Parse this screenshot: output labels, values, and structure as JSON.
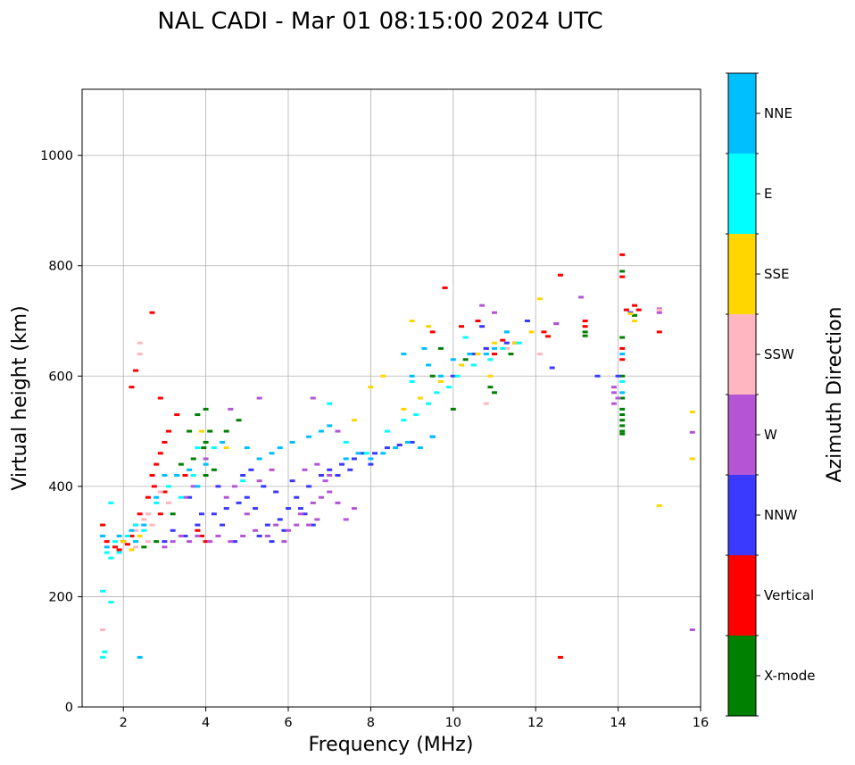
{
  "chart_data": {
    "type": "scatter",
    "title": "NAL CADI - Mar 01 08:15:00 2024 UTC",
    "xlabel": "Frequency (MHz)",
    "ylabel": "Virtual height (km)",
    "xlim": [
      1,
      16
    ],
    "ylim": [
      0,
      1120
    ],
    "xticks": [
      2,
      4,
      6,
      8,
      10,
      12,
      14,
      16
    ],
    "yticks": [
      0,
      200,
      400,
      600,
      800,
      1000
    ],
    "grid": true,
    "colorbar": {
      "label": "Azimuth Direction",
      "categories": [
        {
          "name": "X-mode",
          "color": "#008000"
        },
        {
          "name": "Vertical",
          "color": "#ff0000"
        },
        {
          "name": "NNW",
          "color": "#3a3aff"
        },
        {
          "name": "W",
          "color": "#b455d6"
        },
        {
          "name": "SSW",
          "color": "#ffb6c1"
        },
        {
          "name": "SSE",
          "color": "#ffd700"
        },
        {
          "name": "E",
          "color": "#00ffff"
        },
        {
          "name": "NNE",
          "color": "#00bfff"
        }
      ]
    },
    "series": [
      {
        "name": "Vertical",
        "points": [
          [
            1.5,
            330
          ],
          [
            1.6,
            300
          ],
          [
            1.8,
            290
          ],
          [
            1.9,
            285
          ],
          [
            2.0,
            300
          ],
          [
            2.1,
            295
          ],
          [
            2.2,
            310
          ],
          [
            2.3,
            330
          ],
          [
            2.4,
            350
          ],
          [
            2.6,
            380
          ],
          [
            2.7,
            420
          ],
          [
            2.8,
            440
          ],
          [
            2.9,
            460
          ],
          [
            3.0,
            480
          ],
          [
            3.1,
            500
          ],
          [
            2.75,
            400
          ],
          [
            2.9,
            350
          ],
          [
            3.0,
            390
          ],
          [
            3.5,
            420
          ],
          [
            3.3,
            530
          ],
          [
            2.9,
            560
          ],
          [
            3.8,
            320
          ],
          [
            3.9,
            310
          ],
          [
            4.0,
            300
          ],
          [
            2.3,
            610
          ],
          [
            2.2,
            580
          ],
          [
            2.7,
            715
          ],
          [
            12.2,
            680
          ],
          [
            12.3,
            672
          ],
          [
            12.6,
            783
          ],
          [
            13.2,
            700
          ],
          [
            13.2,
            690
          ],
          [
            14.1,
            820
          ],
          [
            14.1,
            780
          ],
          [
            14.1,
            650
          ],
          [
            14.1,
            630
          ],
          [
            14.2,
            720
          ],
          [
            14.4,
            728
          ],
          [
            14.5,
            720
          ],
          [
            15.0,
            680
          ],
          [
            12.6,
            90
          ],
          [
            11.2,
            665
          ],
          [
            11.5,
            660
          ],
          [
            11.0,
            640
          ],
          [
            10.8,
            650
          ],
          [
            9.8,
            760
          ],
          [
            10.2,
            690
          ],
          [
            10.6,
            700
          ],
          [
            9.5,
            680
          ]
        ]
      },
      {
        "name": "X-mode",
        "points": [
          [
            2.5,
            290
          ],
          [
            2.8,
            300
          ],
          [
            3.2,
            350
          ],
          [
            3.4,
            440
          ],
          [
            3.7,
            450
          ],
          [
            3.8,
            530
          ],
          [
            4.0,
            540
          ],
          [
            4.0,
            480
          ],
          [
            3.95,
            470
          ],
          [
            4.1,
            500
          ],
          [
            4.2,
            430
          ],
          [
            4.0,
            420
          ],
          [
            4.5,
            500
          ],
          [
            4.8,
            520
          ],
          [
            3.6,
            500
          ],
          [
            10.9,
            580
          ],
          [
            10.0,
            540
          ],
          [
            9.5,
            600
          ],
          [
            9.7,
            650
          ],
          [
            10.3,
            630
          ],
          [
            11.0,
            570
          ],
          [
            11.4,
            640
          ],
          [
            13.2,
            680
          ],
          [
            13.2,
            673
          ],
          [
            14.1,
            670
          ],
          [
            14.1,
            600
          ],
          [
            14.1,
            560
          ],
          [
            14.1,
            540
          ],
          [
            14.1,
            530
          ],
          [
            14.1,
            520
          ],
          [
            14.1,
            510
          ],
          [
            14.1,
            500
          ],
          [
            14.1,
            495
          ],
          [
            14.1,
            790
          ],
          [
            14.4,
            710
          ],
          [
            14.0,
            560
          ]
        ]
      },
      {
        "name": "NNW",
        "points": [
          [
            3.0,
            300
          ],
          [
            3.2,
            320
          ],
          [
            3.5,
            310
          ],
          [
            3.8,
            330
          ],
          [
            4.2,
            350
          ],
          [
            4.5,
            360
          ],
          [
            4.8,
            370
          ],
          [
            5.0,
            380
          ],
          [
            5.2,
            360
          ],
          [
            5.5,
            330
          ],
          [
            5.8,
            340
          ],
          [
            6.0,
            360
          ],
          [
            6.2,
            380
          ],
          [
            6.5,
            400
          ],
          [
            6.8,
            420
          ],
          [
            7.0,
            430
          ],
          [
            7.3,
            440
          ],
          [
            7.6,
            450
          ],
          [
            7.8,
            460
          ],
          [
            8.1,
            460
          ],
          [
            8.4,
            470
          ],
          [
            8.7,
            475
          ],
          [
            9.0,
            480
          ],
          [
            6.4,
            350
          ],
          [
            6.6,
            330
          ],
          [
            4.4,
            330
          ],
          [
            4.7,
            300
          ],
          [
            5.3,
            310
          ],
          [
            5.6,
            300
          ],
          [
            5.9,
            320
          ],
          [
            6.1,
            410
          ],
          [
            5.1,
            430
          ],
          [
            4.9,
            420
          ],
          [
            4.3,
            400
          ],
          [
            3.6,
            380
          ],
          [
            3.9,
            350
          ],
          [
            5.7,
            390
          ],
          [
            5.4,
            400
          ],
          [
            6.3,
            360
          ],
          [
            7.2,
            420
          ],
          [
            7.5,
            430
          ],
          [
            8.0,
            440
          ],
          [
            9.5,
            490
          ],
          [
            10.5,
            640
          ],
          [
            10.8,
            650
          ],
          [
            11.3,
            660
          ],
          [
            12.5,
            695
          ],
          [
            12.4,
            615
          ],
          [
            14.3,
            715
          ],
          [
            10.0,
            600
          ],
          [
            10.7,
            690
          ],
          [
            11.8,
            700
          ],
          [
            13.5,
            600
          ],
          [
            14.0,
            600
          ]
        ]
      },
      {
        "name": "W",
        "points": [
          [
            3.0,
            290
          ],
          [
            3.2,
            300
          ],
          [
            3.4,
            310
          ],
          [
            3.6,
            300
          ],
          [
            3.8,
            310
          ],
          [
            4.1,
            300
          ],
          [
            4.3,
            310
          ],
          [
            4.6,
            300
          ],
          [
            4.9,
            310
          ],
          [
            5.2,
            320
          ],
          [
            5.5,
            310
          ],
          [
            5.7,
            330
          ],
          [
            6.0,
            320
          ],
          [
            6.3,
            350
          ],
          [
            6.6,
            370
          ],
          [
            6.8,
            380
          ],
          [
            7.0,
            390
          ],
          [
            7.2,
            370
          ],
          [
            7.4,
            340
          ],
          [
            7.6,
            360
          ],
          [
            6.5,
            330
          ],
          [
            6.7,
            340
          ],
          [
            6.9,
            410
          ],
          [
            6.4,
            430
          ],
          [
            6.7,
            440
          ],
          [
            7.0,
            420
          ],
          [
            5.0,
            350
          ],
          [
            4.5,
            380
          ],
          [
            4.7,
            400
          ],
          [
            5.3,
            410
          ],
          [
            5.6,
            430
          ],
          [
            4.0,
            450
          ],
          [
            4.6,
            540
          ],
          [
            5.3,
            560
          ],
          [
            6.6,
            560
          ],
          [
            7.2,
            500
          ],
          [
            3.5,
            380
          ],
          [
            3.7,
            400
          ],
          [
            13.9,
            580
          ],
          [
            14.0,
            560
          ],
          [
            13.9,
            570
          ],
          [
            13.9,
            550
          ],
          [
            14.1,
            590
          ],
          [
            15.0,
            715
          ],
          [
            15.0,
            722
          ],
          [
            15.8,
            498
          ],
          [
            15.8,
            140
          ],
          [
            13.1,
            743
          ],
          [
            10.7,
            728
          ],
          [
            11.0,
            715
          ],
          [
            12.5,
            695
          ],
          [
            5.9,
            300
          ],
          [
            6.2,
            330
          ]
        ]
      },
      {
        "name": "SSW",
        "points": [
          [
            1.5,
            140
          ],
          [
            2.3,
            320
          ],
          [
            2.5,
            340
          ],
          [
            2.6,
            300
          ],
          [
            2.7,
            330
          ],
          [
            2.3,
            290
          ],
          [
            2.4,
            660
          ],
          [
            2.4,
            640
          ],
          [
            2.6,
            350
          ],
          [
            2.9,
            390
          ],
          [
            3.1,
            370
          ],
          [
            15.0,
            720
          ],
          [
            12.1,
            640
          ],
          [
            10.5,
            620
          ],
          [
            10.8,
            550
          ],
          [
            11.3,
            650
          ]
        ]
      },
      {
        "name": "SSE",
        "points": [
          [
            2.0,
            300
          ],
          [
            2.2,
            285
          ],
          [
            2.4,
            310
          ],
          [
            3.3,
            420
          ],
          [
            3.9,
            500
          ],
          [
            4.5,
            470
          ],
          [
            7.6,
            520
          ],
          [
            8.0,
            580
          ],
          [
            8.3,
            600
          ],
          [
            8.8,
            540
          ],
          [
            9.2,
            560
          ],
          [
            9.7,
            590
          ],
          [
            10.2,
            620
          ],
          [
            10.6,
            640
          ],
          [
            11.0,
            660
          ],
          [
            11.5,
            660
          ],
          [
            11.9,
            680
          ],
          [
            12.1,
            740
          ],
          [
            15.0,
            365
          ],
          [
            15.8,
            535
          ],
          [
            15.8,
            450
          ],
          [
            14.3,
            713
          ],
          [
            14.4,
            700
          ],
          [
            9.0,
            700
          ],
          [
            9.4,
            690
          ],
          [
            10.9,
            600
          ]
        ]
      },
      {
        "name": "E",
        "points": [
          [
            1.6,
            280
          ],
          [
            1.7,
            270
          ],
          [
            1.8,
            300
          ],
          [
            1.9,
            280
          ],
          [
            2.1,
            310
          ],
          [
            2.3,
            330
          ],
          [
            2.5,
            320
          ],
          [
            2.8,
            370
          ],
          [
            3.1,
            400
          ],
          [
            3.4,
            380
          ],
          [
            3.7,
            420
          ],
          [
            3.8,
            470
          ],
          [
            4.2,
            470
          ],
          [
            4.9,
            410
          ],
          [
            7.0,
            550
          ],
          [
            7.4,
            480
          ],
          [
            7.9,
            460
          ],
          [
            8.4,
            500
          ],
          [
            8.8,
            520
          ],
          [
            9.1,
            530
          ],
          [
            9.4,
            550
          ],
          [
            9.6,
            570
          ],
          [
            9.9,
            580
          ],
          [
            10.1,
            600
          ],
          [
            10.5,
            620
          ],
          [
            10.9,
            630
          ],
          [
            11.2,
            650
          ],
          [
            11.6,
            660
          ],
          [
            1.7,
            370
          ],
          [
            1.7,
            190
          ],
          [
            1.5,
            210
          ],
          [
            1.55,
            100
          ],
          [
            1.5,
            90
          ],
          [
            9.0,
            590
          ],
          [
            10.3,
            670
          ],
          [
            11.3,
            680
          ],
          [
            14.1,
            590
          ]
        ]
      },
      {
        "name": "NNE",
        "points": [
          [
            1.5,
            310
          ],
          [
            1.6,
            290
          ],
          [
            1.9,
            310
          ],
          [
            2.2,
            320
          ],
          [
            2.3,
            300
          ],
          [
            2.5,
            330
          ],
          [
            2.8,
            380
          ],
          [
            3.0,
            420
          ],
          [
            3.3,
            420
          ],
          [
            3.6,
            430
          ],
          [
            3.8,
            400
          ],
          [
            4.0,
            440
          ],
          [
            4.4,
            480
          ],
          [
            5.0,
            470
          ],
          [
            5.3,
            450
          ],
          [
            5.6,
            460
          ],
          [
            5.8,
            470
          ],
          [
            6.1,
            480
          ],
          [
            6.5,
            490
          ],
          [
            6.8,
            500
          ],
          [
            7.0,
            510
          ],
          [
            7.4,
            450
          ],
          [
            7.7,
            460
          ],
          [
            8.0,
            450
          ],
          [
            8.3,
            460
          ],
          [
            8.6,
            470
          ],
          [
            8.9,
            480
          ],
          [
            9.2,
            470
          ],
          [
            9.5,
            490
          ],
          [
            9.0,
            600
          ],
          [
            9.4,
            620
          ],
          [
            9.7,
            600
          ],
          [
            10.0,
            630
          ],
          [
            10.4,
            640
          ],
          [
            10.8,
            640
          ],
          [
            11.0,
            650
          ],
          [
            11.3,
            680
          ],
          [
            2.4,
            90
          ],
          [
            9.3,
            650
          ],
          [
            8.8,
            640
          ],
          [
            14.1,
            640
          ],
          [
            14.1,
            570
          ]
        ]
      }
    ]
  }
}
